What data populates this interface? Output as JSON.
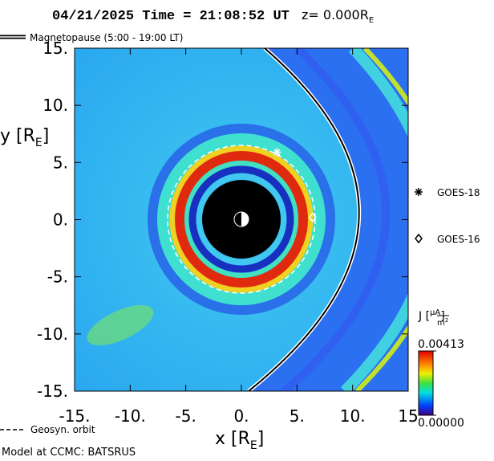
{
  "chart_data": {
    "type": "heatmap",
    "title": "04/21/2025 Time = 21:08:52 UT",
    "title_z": "z= 0.000R",
    "title_z_sub": "E",
    "magnetopause_label": "Magnetopause (5:00 - 19:00 LT)",
    "x_label": "x [R",
    "x_label_sub": "E",
    "x_label_end": "]",
    "y_label": "y [R",
    "y_label_sub": "E",
    "y_label_end": "]",
    "xlim": [
      -15,
      15
    ],
    "ylim": [
      -15,
      15
    ],
    "xticks": [
      {
        "value": -15,
        "label": "-15."
      },
      {
        "value": -10,
        "label": "-10."
      },
      {
        "value": -5,
        "label": "-5."
      },
      {
        "value": 0,
        "label": "0."
      },
      {
        "value": 5,
        "label": "5."
      },
      {
        "value": 10,
        "label": "10."
      },
      {
        "value": 15,
        "label": "15"
      }
    ],
    "yticks": [
      {
        "value": -15,
        "label": "-15."
      },
      {
        "value": -10,
        "label": "-10."
      },
      {
        "value": -5,
        "label": "-5."
      },
      {
        "value": 0,
        "label": "0."
      },
      {
        "value": 5,
        "label": "5."
      },
      {
        "value": 10,
        "label": "10."
      },
      {
        "value": 15,
        "label": "15."
      }
    ],
    "markers": [
      {
        "name": "GOES-18",
        "x": 3.2,
        "y": 5.9,
        "symbol": "star"
      },
      {
        "name": "GOES-16",
        "x": 6.4,
        "y": 0.2,
        "symbol": "diamond"
      }
    ],
    "colorbar_label": "J [",
    "colorbar_num": "μA",
    "colorbar_den": "m",
    "colorbar_den_sup": "2",
    "colorbar_label_end": "]",
    "colorbar_ticks": [
      {
        "value": 0.00413,
        "label": "0.00413"
      },
      {
        "value": 0,
        "label": "0.00000"
      }
    ],
    "clim": [
      0,
      0.00413
    ],
    "geosyn_label": "Geosyn. orbit",
    "footer": "Model at CCMC: BATSRUS"
  }
}
